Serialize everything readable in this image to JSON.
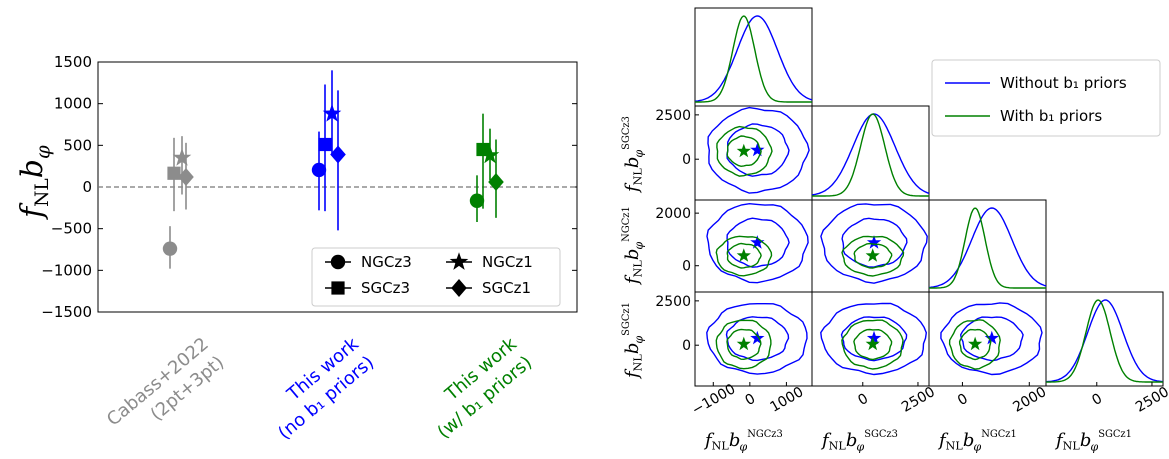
{
  "chart_data": [
    {
      "type": "scatter",
      "ylabel": "f_NL b_φ",
      "ylim": [
        -1500,
        1500
      ],
      "yticks": [
        -1500,
        -1000,
        -500,
        0,
        500,
        1000,
        1500
      ],
      "reference_line": 0,
      "categories": [
        {
          "lines": [
            "Cabass+2022",
            "(2pt+3pt)"
          ],
          "color": "#8c8c8c"
        },
        {
          "lines": [
            "This work",
            "(no b₁ priors)"
          ],
          "color": "#0000ff"
        },
        {
          "lines": [
            "This work",
            "(w/ b₁ priors)"
          ],
          "color": "#008000"
        }
      ],
      "series": [
        {
          "name": "NGCz3",
          "marker": "circle",
          "values": [
            -740,
            205,
            -165
          ],
          "lower": [
            -980,
            -280,
            -420
          ],
          "upper": [
            -470,
            665,
            140
          ]
        },
        {
          "name": "SGCz3",
          "marker": "square",
          "values": [
            165,
            510,
            450
          ],
          "lower": [
            -290,
            -290,
            -260
          ],
          "upper": [
            590,
            1230,
            880
          ]
        },
        {
          "name": "NGCz1",
          "marker": "star",
          "values": [
            350,
            880,
            380
          ],
          "lower": [
            -90,
            380,
            80
          ],
          "upper": [
            610,
            1400,
            700
          ]
        },
        {
          "name": "SGCz1",
          "marker": "diamond",
          "values": [
            120,
            390,
            60
          ],
          "lower": [
            -270,
            -520,
            -370
          ],
          "upper": [
            530,
            1160,
            570
          ]
        }
      ],
      "legend": {
        "placement": "lower-right",
        "columns": 2,
        "order": [
          "NGCz3",
          "NGCz1",
          "SGCz3",
          "SGCz1"
        ]
      }
    },
    {
      "type": "corner",
      "parameters": [
        {
          "label": "f_NL b_φ^NGCz3",
          "sup": "NGCz3",
          "range": [
            -1500,
            1700
          ],
          "ticks": [
            -1000,
            0,
            1000
          ],
          "tick_labels": [
            "−1000",
            "0",
            "1000"
          ]
        },
        {
          "label": "f_NL b_φ^SGCz3",
          "sup": "SGCz3",
          "range": [
            -2300,
            3000
          ],
          "ticks": [
            0,
            2500
          ],
          "tick_labels": [
            "0",
            "2500"
          ]
        },
        {
          "label": "f_NL b_φ^NGCz1",
          "sup": "NGCz1",
          "range": [
            -1000,
            2500
          ],
          "ticks": [
            0,
            2000
          ],
          "tick_labels": [
            "0",
            "2000"
          ]
        },
        {
          "label": "f_NL b_φ^SGCz1",
          "sup": "SGCz1",
          "range": [
            -2300,
            3000
          ],
          "ticks": [
            0,
            2500
          ],
          "tick_labels": [
            "0",
            "2500"
          ]
        }
      ],
      "series": [
        {
          "name": "Without b₁ priors",
          "color": "#0000ff",
          "means": [
            205,
            510,
            880,
            390
          ],
          "sigmas": [
            550,
            950,
            600,
            800
          ]
        },
        {
          "name": "With b₁ priors",
          "color": "#008000",
          "means": [
            -165,
            450,
            380,
            60
          ],
          "sigmas": [
            300,
            550,
            300,
            550
          ]
        }
      ],
      "legend": {
        "placement": "top-right",
        "entries": [
          "Without b₁ priors",
          "With b₁ priors"
        ]
      }
    }
  ]
}
